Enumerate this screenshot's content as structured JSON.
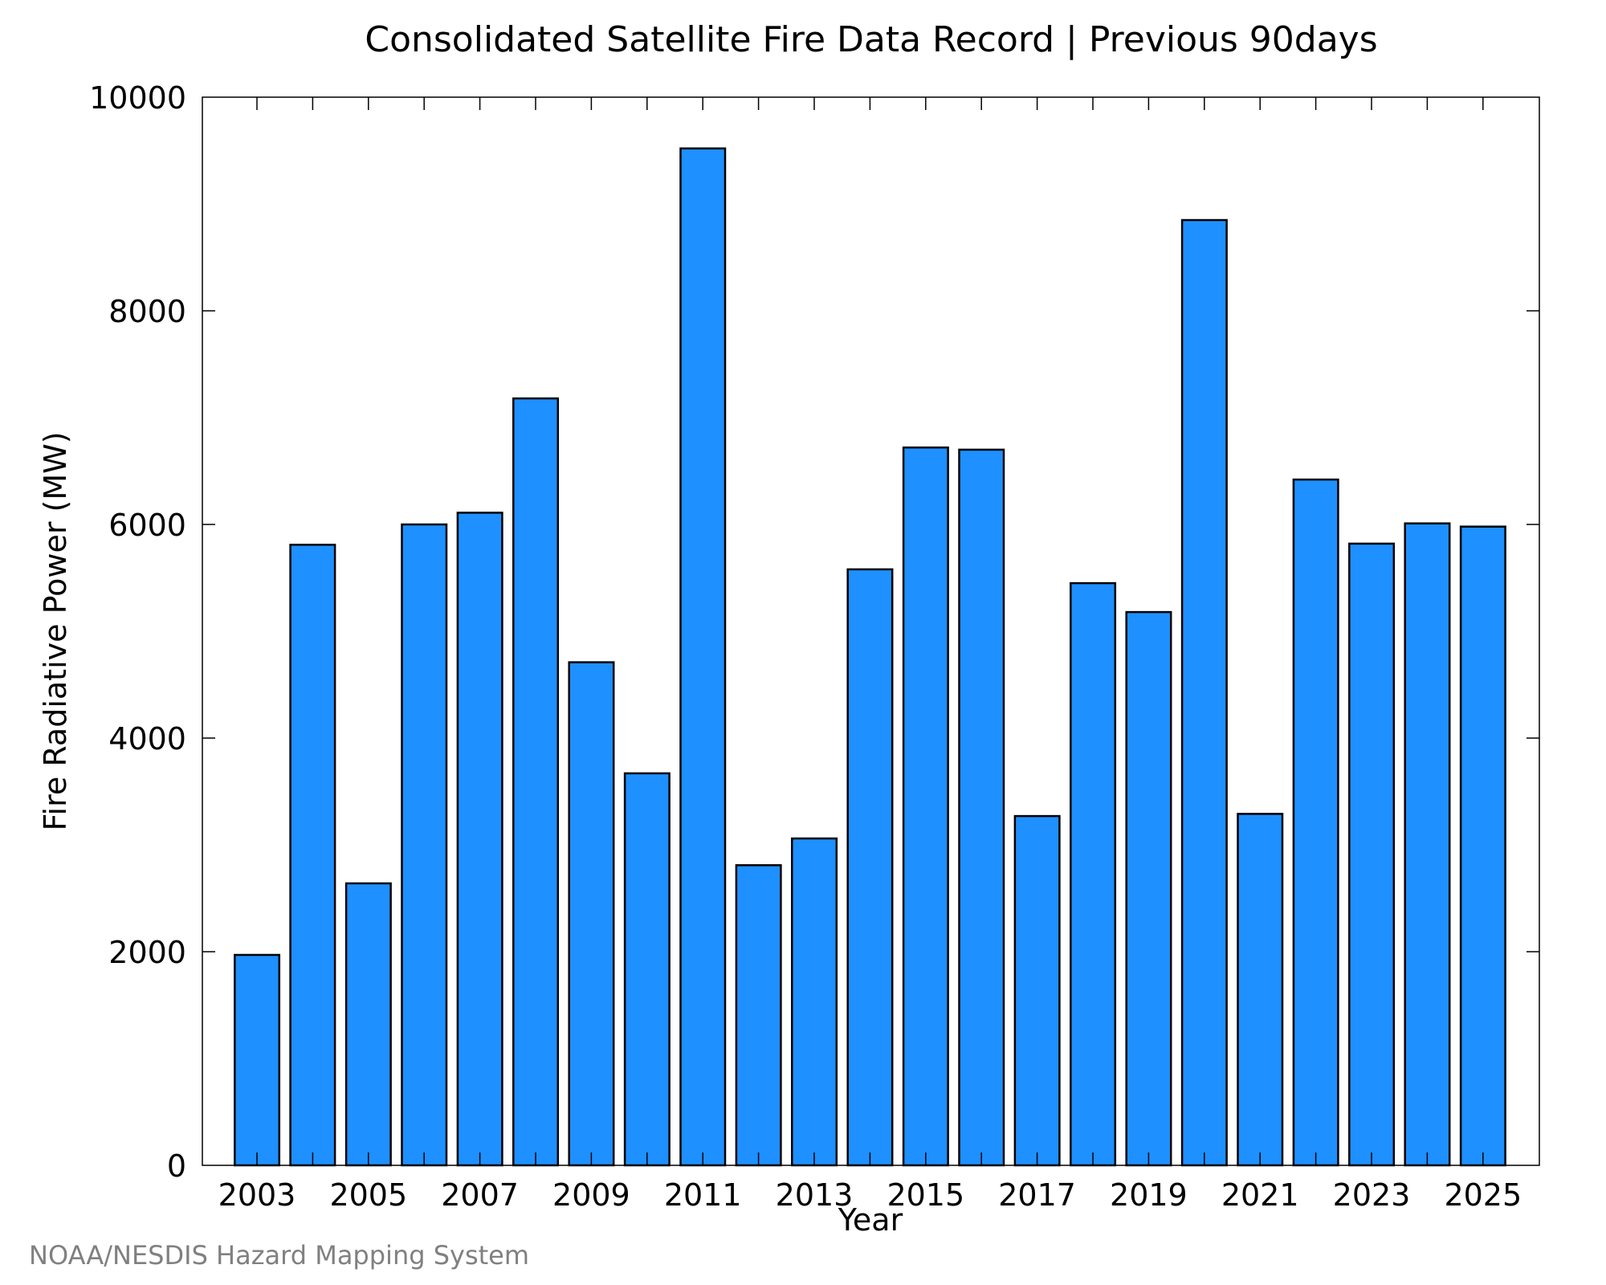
{
  "chart_data": {
    "type": "bar",
    "title": "Consolidated Satellite Fire Data Record | Previous 90days",
    "xlabel": "Year",
    "ylabel": "Fire Radiative Power (MW)",
    "categories": [
      "2003",
      "2004",
      "2005",
      "2006",
      "2007",
      "2008",
      "2009",
      "2010",
      "2011",
      "2012",
      "2013",
      "2014",
      "2015",
      "2016",
      "2017",
      "2018",
      "2019",
      "2020",
      "2021",
      "2022",
      "2023",
      "2024",
      "2025"
    ],
    "values": [
      1970,
      5810,
      2640,
      6000,
      6110,
      7180,
      4710,
      3670,
      9520,
      2810,
      3060,
      5580,
      6720,
      6700,
      3270,
      5450,
      5180,
      8850,
      3290,
      6420,
      5820,
      6010,
      5980
    ],
    "x_tick_labels": [
      "2003",
      "2005",
      "2007",
      "2009",
      "2011",
      "2013",
      "2015",
      "2017",
      "2019",
      "2021",
      "2023",
      "2025"
    ],
    "y_ticks": [
      0,
      2000,
      4000,
      6000,
      8000,
      10000
    ],
    "y_tick_labels": [
      "0",
      "2000",
      "4000",
      "6000",
      "8000",
      "10000"
    ],
    "ylim": [
      0,
      10000
    ],
    "grid": false,
    "legend": "none",
    "bar_color": "#1e90ff",
    "bar_edge_color": "#000000"
  },
  "credit": "NOAA/NESDIS Hazard Mapping System"
}
